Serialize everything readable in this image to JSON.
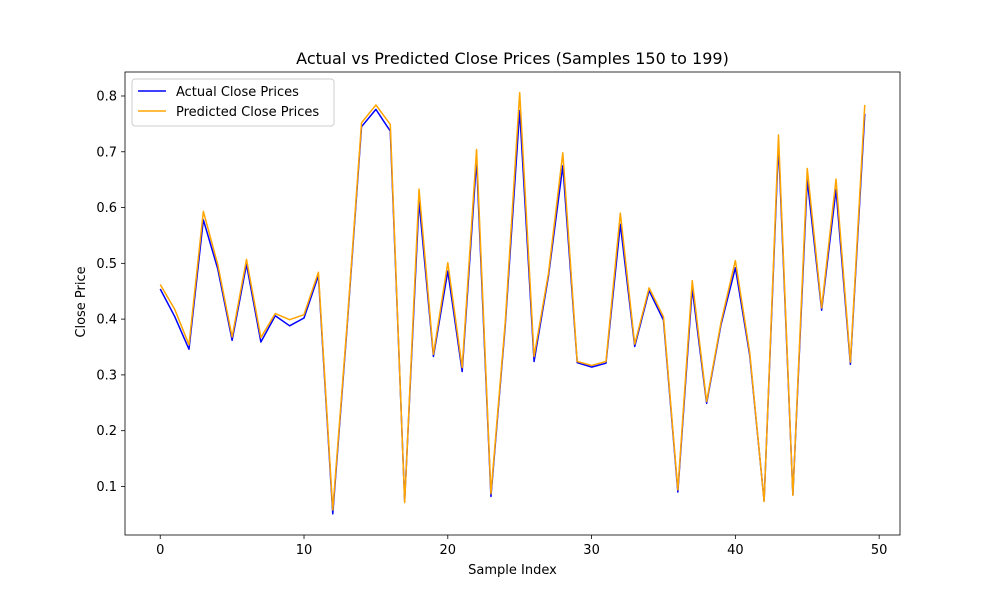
{
  "chart_data": {
    "type": "line",
    "title": "Actual vs Predicted Close Prices (Samples 150 to 199)",
    "xlabel": "Sample Index",
    "ylabel": "Close Price",
    "xlim": [
      -2.45,
      51.45
    ],
    "ylim": [
      0.013,
      0.843
    ],
    "xticks": [
      0,
      10,
      20,
      30,
      40,
      50
    ],
    "yticks": [
      0.1,
      0.2,
      0.3,
      0.4,
      0.5,
      0.6,
      0.7,
      0.8
    ],
    "legend_position": "upper-left",
    "grid": false,
    "x": [
      0,
      1,
      2,
      3,
      4,
      5,
      6,
      7,
      8,
      9,
      10,
      11,
      12,
      13,
      14,
      15,
      16,
      17,
      18,
      19,
      20,
      21,
      22,
      23,
      24,
      25,
      26,
      27,
      28,
      29,
      30,
      31,
      32,
      33,
      34,
      35,
      36,
      37,
      38,
      39,
      40,
      41,
      42,
      43,
      44,
      45,
      46,
      47,
      48,
      49
    ],
    "series": [
      {
        "name": "Actual Close Prices",
        "color": "#0000ff",
        "values": [
          0.454,
          0.405,
          0.346,
          0.578,
          0.49,
          0.362,
          0.498,
          0.359,
          0.406,
          0.388,
          0.402,
          0.478,
          0.051,
          0.387,
          0.745,
          0.776,
          0.737,
          0.074,
          0.611,
          0.333,
          0.486,
          0.306,
          0.685,
          0.082,
          0.39,
          0.774,
          0.324,
          0.477,
          0.675,
          0.322,
          0.314,
          0.321,
          0.57,
          0.351,
          0.451,
          0.398,
          0.09,
          0.455,
          0.249,
          0.39,
          0.492,
          0.335,
          0.074,
          0.714,
          0.085,
          0.65,
          0.416,
          0.632,
          0.319,
          0.768
        ]
      },
      {
        "name": "Predicted Close Prices",
        "color": "#ffa500",
        "values": [
          0.462,
          0.418,
          0.354,
          0.593,
          0.498,
          0.368,
          0.507,
          0.367,
          0.41,
          0.399,
          0.408,
          0.484,
          0.058,
          0.392,
          0.752,
          0.784,
          0.749,
          0.071,
          0.633,
          0.337,
          0.501,
          0.313,
          0.704,
          0.087,
          0.396,
          0.806,
          0.333,
          0.482,
          0.698,
          0.324,
          0.317,
          0.324,
          0.59,
          0.355,
          0.456,
          0.404,
          0.094,
          0.469,
          0.252,
          0.394,
          0.505,
          0.34,
          0.073,
          0.73,
          0.084,
          0.67,
          0.42,
          0.651,
          0.323,
          0.784
        ]
      }
    ]
  }
}
